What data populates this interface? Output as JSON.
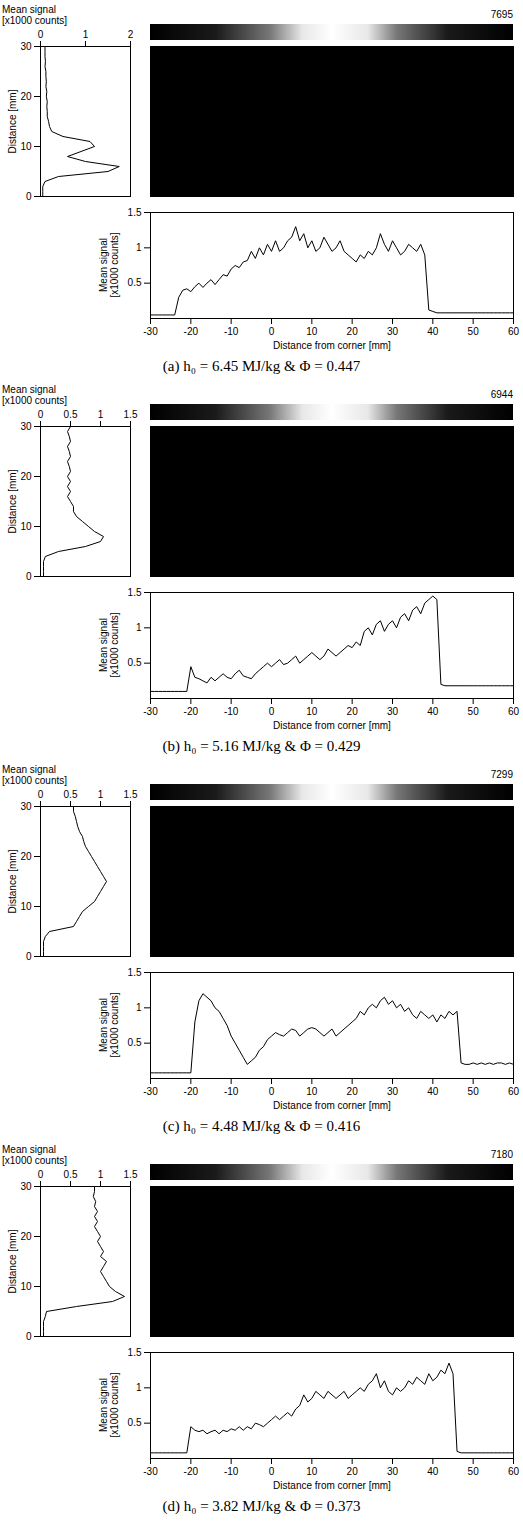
{
  "chart_data": [
    {
      "type": "line",
      "title": "(a) h₀ = 6.45 MJ/kg & Φ = 0.447",
      "colorbar_max": 7695,
      "color": "#000000",
      "vertical_profile": {
        "xlabel": "Mean signal\n[x1000 counts]",
        "ylabel": "Distance [mm]",
        "xlim": [
          0,
          2
        ],
        "xticks": [
          0,
          1,
          2
        ],
        "ylim": [
          0,
          30
        ],
        "yticks": [
          0,
          10,
          20,
          30
        ],
        "y": [
          0,
          1,
          2,
          3,
          4,
          5,
          6,
          7,
          8,
          9,
          10,
          11,
          12,
          13,
          14,
          15,
          16,
          17,
          18,
          19,
          20,
          21,
          22,
          23,
          24,
          25,
          26,
          27,
          28,
          29,
          30
        ],
        "values": [
          0.05,
          0.05,
          0.05,
          0.1,
          0.4,
          1.5,
          1.75,
          1.0,
          0.6,
          0.9,
          1.2,
          1.1,
          0.5,
          0.25,
          0.2,
          0.18,
          0.15,
          0.15,
          0.14,
          0.15,
          0.13,
          0.14,
          0.12,
          0.13,
          0.12,
          0.12,
          0.1,
          0.11,
          0.1,
          0.1,
          0.1
        ]
      },
      "horizontal_profile": {
        "xlabel": "Distance from corner [mm]",
        "ylabel": "Mean signal\n[x1000 counts]",
        "xlim": [
          -30,
          60
        ],
        "xticks": [
          -30,
          -20,
          -10,
          0,
          10,
          20,
          30,
          40,
          50,
          60
        ],
        "ylim": [
          0,
          1.5
        ],
        "yticks": [
          0.5,
          1,
          1.5
        ],
        "x": [
          -30,
          -29,
          -28,
          -27,
          -26,
          -25,
          -24,
          -23,
          -22,
          -21,
          -20,
          -19,
          -18,
          -17,
          -16,
          -15,
          -14,
          -13,
          -12,
          -11,
          -10,
          -9,
          -8,
          -7,
          -6,
          -5,
          -4,
          -3,
          -2,
          -1,
          0,
          1,
          2,
          3,
          4,
          5,
          6,
          7,
          8,
          9,
          10,
          11,
          12,
          13,
          14,
          15,
          16,
          17,
          18,
          19,
          20,
          21,
          22,
          23,
          24,
          25,
          26,
          27,
          28,
          29,
          30,
          31,
          32,
          33,
          34,
          35,
          36,
          37,
          38,
          39,
          40,
          41,
          42,
          43,
          44,
          45,
          46,
          47,
          48,
          49,
          50,
          51,
          52,
          53,
          54,
          55,
          56,
          57,
          58,
          59,
          60
        ],
        "values": [
          0.05,
          0.05,
          0.05,
          0.05,
          0.05,
          0.05,
          0.05,
          0.3,
          0.4,
          0.42,
          0.38,
          0.45,
          0.5,
          0.44,
          0.5,
          0.55,
          0.48,
          0.55,
          0.62,
          0.6,
          0.7,
          0.75,
          0.72,
          0.8,
          0.82,
          0.95,
          0.85,
          1.0,
          0.9,
          1.05,
          0.95,
          1.1,
          0.95,
          1.0,
          1.1,
          1.15,
          1.3,
          1.1,
          1.2,
          1.0,
          1.1,
          0.95,
          1.0,
          1.15,
          1.05,
          0.95,
          1.0,
          1.1,
          0.95,
          0.9,
          0.85,
          0.8,
          0.9,
          0.85,
          0.95,
          0.9,
          1.0,
          1.2,
          1.05,
          0.95,
          1.1,
          1.0,
          0.9,
          0.95,
          1.05,
          1.0,
          0.95,
          1.05,
          0.9,
          0.12,
          0.1,
          0.08,
          0.08,
          0.08,
          0.08,
          0.08,
          0.08,
          0.08,
          0.08,
          0.08,
          0.08,
          0.08,
          0.08,
          0.08,
          0.08,
          0.08,
          0.08,
          0.08,
          0.08,
          0.08,
          0.08
        ]
      }
    },
    {
      "type": "line",
      "title": "(b) h₀ = 5.16 MJ/kg & Φ = 0.429",
      "colorbar_max": 6944,
      "color": "#000000",
      "vertical_profile": {
        "xlabel": "Mean signal\n[x1000 counts]",
        "ylabel": "Distance [mm]",
        "xlim": [
          0,
          1.5
        ],
        "xticks": [
          0,
          0.5,
          1,
          1.5
        ],
        "ylim": [
          0,
          30
        ],
        "yticks": [
          0,
          10,
          20,
          30
        ],
        "y": [
          0,
          1,
          2,
          3,
          4,
          5,
          6,
          7,
          8,
          9,
          10,
          11,
          12,
          13,
          14,
          15,
          16,
          17,
          18,
          19,
          20,
          21,
          22,
          23,
          24,
          25,
          26,
          27,
          28,
          29,
          30
        ],
        "values": [
          0.05,
          0.05,
          0.05,
          0.05,
          0.08,
          0.3,
          0.75,
          1.0,
          1.05,
          0.9,
          0.8,
          0.7,
          0.6,
          0.55,
          0.55,
          0.5,
          0.45,
          0.5,
          0.45,
          0.5,
          0.45,
          0.5,
          0.48,
          0.45,
          0.5,
          0.48,
          0.45,
          0.5,
          0.48,
          0.45,
          0.5
        ]
      },
      "horizontal_profile": {
        "xlabel": "Distance from corner [mm]",
        "ylabel": "Mean signal\n[x1000 counts]",
        "xlim": [
          -30,
          60
        ],
        "xticks": [
          -30,
          -20,
          -10,
          0,
          10,
          20,
          30,
          40,
          50,
          60
        ],
        "ylim": [
          0,
          1.5
        ],
        "yticks": [
          0.5,
          1,
          1.5
        ],
        "x": [
          -30,
          -29,
          -28,
          -27,
          -26,
          -25,
          -24,
          -23,
          -22,
          -21,
          -20,
          -19,
          -18,
          -17,
          -16,
          -15,
          -14,
          -13,
          -12,
          -11,
          -10,
          -9,
          -8,
          -7,
          -6,
          -5,
          -4,
          -3,
          -2,
          -1,
          0,
          1,
          2,
          3,
          4,
          5,
          6,
          7,
          8,
          9,
          10,
          11,
          12,
          13,
          14,
          15,
          16,
          17,
          18,
          19,
          20,
          21,
          22,
          23,
          24,
          25,
          26,
          27,
          28,
          29,
          30,
          31,
          32,
          33,
          34,
          35,
          36,
          37,
          38,
          39,
          40,
          41,
          42,
          43,
          44,
          45,
          46,
          47,
          48,
          49,
          50,
          51,
          52,
          53,
          54,
          55,
          56,
          57,
          58,
          59,
          60
        ],
        "values": [
          0.1,
          0.1,
          0.1,
          0.1,
          0.1,
          0.1,
          0.1,
          0.1,
          0.1,
          0.1,
          0.45,
          0.3,
          0.28,
          0.25,
          0.22,
          0.3,
          0.25,
          0.3,
          0.35,
          0.3,
          0.28,
          0.35,
          0.4,
          0.32,
          0.3,
          0.28,
          0.35,
          0.4,
          0.45,
          0.5,
          0.45,
          0.5,
          0.55,
          0.48,
          0.5,
          0.55,
          0.6,
          0.5,
          0.55,
          0.6,
          0.65,
          0.6,
          0.55,
          0.6,
          0.7,
          0.65,
          0.6,
          0.65,
          0.7,
          0.75,
          0.72,
          0.8,
          0.75,
          0.95,
          1.0,
          0.9,
          1.05,
          1.1,
          0.95,
          1.05,
          1.1,
          1.0,
          1.15,
          1.2,
          1.1,
          1.25,
          1.3,
          1.2,
          1.35,
          1.4,
          1.45,
          1.4,
          0.2,
          0.18,
          0.18,
          0.18,
          0.18,
          0.18,
          0.18,
          0.18,
          0.18,
          0.18,
          0.18,
          0.18,
          0.18,
          0.18,
          0.18,
          0.18,
          0.18,
          0.18,
          0.18
        ]
      }
    },
    {
      "type": "line",
      "title": "(c) h₀ = 4.48 MJ/kg & Φ = 0.416",
      "colorbar_max": 7299,
      "color": "#000000",
      "vertical_profile": {
        "xlabel": "Mean signal\n[x1000 counts]",
        "ylabel": "Distance [mm]",
        "xlim": [
          0,
          1.5
        ],
        "xticks": [
          0,
          0.5,
          1,
          1.5
        ],
        "ylim": [
          0,
          30
        ],
        "yticks": [
          0,
          10,
          20,
          30
        ],
        "y": [
          0,
          1,
          2,
          3,
          4,
          5,
          6,
          7,
          8,
          9,
          10,
          11,
          12,
          13,
          14,
          15,
          16,
          17,
          18,
          19,
          20,
          21,
          22,
          23,
          24,
          25,
          26,
          27,
          28,
          29,
          30
        ],
        "values": [
          0.05,
          0.05,
          0.05,
          0.05,
          0.08,
          0.15,
          0.55,
          0.6,
          0.65,
          0.7,
          0.8,
          0.9,
          0.95,
          1.0,
          1.05,
          1.1,
          1.05,
          1.0,
          0.95,
          0.9,
          0.85,
          0.8,
          0.75,
          0.72,
          0.7,
          0.65,
          0.62,
          0.6,
          0.58,
          0.55,
          0.55
        ]
      },
      "horizontal_profile": {
        "xlabel": "Distance from corner [mm]",
        "ylabel": "Mean signal\n[x1000 counts]",
        "xlim": [
          -30,
          60
        ],
        "xticks": [
          -30,
          -20,
          -10,
          0,
          10,
          20,
          30,
          40,
          50,
          60
        ],
        "ylim": [
          0,
          1.5
        ],
        "yticks": [
          0.5,
          1,
          1.5
        ],
        "x": [
          -30,
          -29,
          -28,
          -27,
          -26,
          -25,
          -24,
          -23,
          -22,
          -21,
          -20,
          -19,
          -18,
          -17,
          -16,
          -15,
          -14,
          -13,
          -12,
          -11,
          -10,
          -9,
          -8,
          -7,
          -6,
          -5,
          -4,
          -3,
          -2,
          -1,
          0,
          1,
          2,
          3,
          4,
          5,
          6,
          7,
          8,
          9,
          10,
          11,
          12,
          13,
          14,
          15,
          16,
          17,
          18,
          19,
          20,
          21,
          22,
          23,
          24,
          25,
          26,
          27,
          28,
          29,
          30,
          31,
          32,
          33,
          34,
          35,
          36,
          37,
          38,
          39,
          40,
          41,
          42,
          43,
          44,
          45,
          46,
          47,
          48,
          49,
          50,
          51,
          52,
          53,
          54,
          55,
          56,
          57,
          58,
          59,
          60
        ],
        "values": [
          0.08,
          0.08,
          0.08,
          0.08,
          0.08,
          0.08,
          0.08,
          0.08,
          0.08,
          0.08,
          0.08,
          0.8,
          1.1,
          1.2,
          1.15,
          1.1,
          1.0,
          0.95,
          0.85,
          0.75,
          0.6,
          0.5,
          0.4,
          0.3,
          0.2,
          0.25,
          0.3,
          0.4,
          0.45,
          0.55,
          0.6,
          0.65,
          0.62,
          0.6,
          0.65,
          0.7,
          0.68,
          0.6,
          0.65,
          0.7,
          0.72,
          0.7,
          0.65,
          0.6,
          0.65,
          0.7,
          0.6,
          0.65,
          0.7,
          0.75,
          0.8,
          0.85,
          0.95,
          0.9,
          1.0,
          1.05,
          1.0,
          1.1,
          1.15,
          1.05,
          1.1,
          1.0,
          1.05,
          0.95,
          1.0,
          0.9,
          0.85,
          0.95,
          0.9,
          0.85,
          0.9,
          0.8,
          0.9,
          0.85,
          0.95,
          0.9,
          0.95,
          0.22,
          0.2,
          0.2,
          0.22,
          0.2,
          0.22,
          0.2,
          0.22,
          0.2,
          0.22,
          0.22,
          0.2,
          0.22,
          0.2
        ]
      }
    },
    {
      "type": "line",
      "title": "(d) h₀ = 3.82 MJ/kg & Φ = 0.373",
      "colorbar_max": 7180,
      "color": "#000000",
      "vertical_profile": {
        "xlabel": "Mean signal\n[x1000 counts]",
        "ylabel": "Distance [mm]",
        "xlim": [
          0,
          1.5
        ],
        "xticks": [
          0,
          0.5,
          1,
          1.5
        ],
        "ylim": [
          0,
          30
        ],
        "yticks": [
          0,
          10,
          20,
          30
        ],
        "y": [
          0,
          1,
          2,
          3,
          4,
          5,
          6,
          7,
          8,
          9,
          10,
          11,
          12,
          13,
          14,
          15,
          16,
          17,
          18,
          19,
          20,
          21,
          22,
          23,
          24,
          25,
          26,
          27,
          28,
          29,
          30
        ],
        "values": [
          0.05,
          0.05,
          0.05,
          0.05,
          0.08,
          0.1,
          0.6,
          1.2,
          1.4,
          1.25,
          1.15,
          1.1,
          1.05,
          1.0,
          1.05,
          1.1,
          1.0,
          1.05,
          1.0,
          0.95,
          1.0,
          0.95,
          0.9,
          0.95,
          0.9,
          0.95,
          0.9,
          0.92,
          0.88,
          0.9,
          0.9
        ]
      },
      "horizontal_profile": {
        "xlabel": "Distance from corner [mm]",
        "ylabel": "Mean signal\n[x1000 counts]",
        "xlim": [
          -30,
          60
        ],
        "xticks": [
          -30,
          -20,
          -10,
          0,
          10,
          20,
          30,
          40,
          50,
          60
        ],
        "ylim": [
          0,
          1.5
        ],
        "yticks": [
          0.5,
          1,
          1.5
        ],
        "x": [
          -30,
          -29,
          -28,
          -27,
          -26,
          -25,
          -24,
          -23,
          -22,
          -21,
          -20,
          -19,
          -18,
          -17,
          -16,
          -15,
          -14,
          -13,
          -12,
          -11,
          -10,
          -9,
          -8,
          -7,
          -6,
          -5,
          -4,
          -3,
          -2,
          -1,
          0,
          1,
          2,
          3,
          4,
          5,
          6,
          7,
          8,
          9,
          10,
          11,
          12,
          13,
          14,
          15,
          16,
          17,
          18,
          19,
          20,
          21,
          22,
          23,
          24,
          25,
          26,
          27,
          28,
          29,
          30,
          31,
          32,
          33,
          34,
          35,
          36,
          37,
          38,
          39,
          40,
          41,
          42,
          43,
          44,
          45,
          46,
          47,
          48,
          49,
          50,
          51,
          52,
          53,
          54,
          55,
          56,
          57,
          58,
          59,
          60
        ],
        "values": [
          0.08,
          0.08,
          0.08,
          0.08,
          0.08,
          0.08,
          0.08,
          0.08,
          0.08,
          0.08,
          0.45,
          0.4,
          0.38,
          0.4,
          0.35,
          0.38,
          0.4,
          0.35,
          0.4,
          0.38,
          0.42,
          0.4,
          0.45,
          0.4,
          0.45,
          0.42,
          0.5,
          0.48,
          0.45,
          0.5,
          0.55,
          0.6,
          0.55,
          0.6,
          0.65,
          0.6,
          0.7,
          0.75,
          0.9,
          0.8,
          0.85,
          0.95,
          0.9,
          0.85,
          0.95,
          0.9,
          0.85,
          0.9,
          0.95,
          0.85,
          0.9,
          0.95,
          1.0,
          0.95,
          1.05,
          1.1,
          1.2,
          1.0,
          1.1,
          0.95,
          0.9,
          1.0,
          0.95,
          1.0,
          1.1,
          1.05,
          1.15,
          1.1,
          1.05,
          1.2,
          1.1,
          1.15,
          1.25,
          1.2,
          1.35,
          1.2,
          0.1,
          0.08,
          0.08,
          0.08,
          0.08,
          0.08,
          0.08,
          0.08,
          0.08,
          0.08,
          0.08,
          0.08,
          0.08,
          0.08,
          0.08
        ]
      }
    }
  ]
}
